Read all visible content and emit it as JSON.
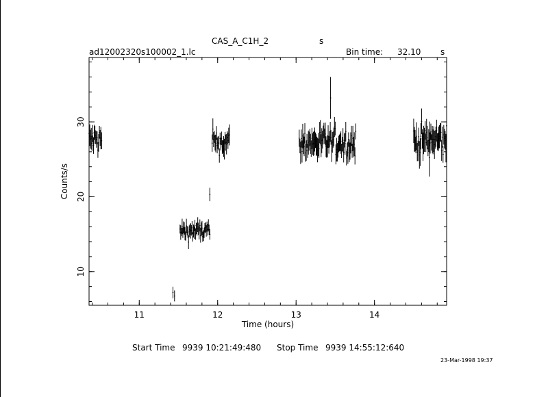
{
  "header": {
    "object_name": "CAS_A_C1H_2",
    "object_unit": "s",
    "file_name": "ad12002320s100002_1.lc",
    "bin_time_label": "Bin time:",
    "bin_time_value": "32.10",
    "bin_time_unit": "s"
  },
  "footer": {
    "start_label": "Start Time",
    "start_value": "9939 10:21:49:480",
    "stop_label": "Stop Time",
    "stop_value": "9939 14:55:12:640",
    "timestamp": "23-Mar-1998 19:37"
  },
  "chart_data": {
    "type": "scatter",
    "xlabel": "Time (hours)",
    "ylabel": "Counts/s",
    "xlim": [
      10.36,
      14.92
    ],
    "ylim": [
      5.5,
      38.6
    ],
    "xticks": [
      11,
      12,
      13,
      14
    ],
    "yticks": [
      10,
      20,
      30
    ],
    "x_minor_step": 0.2,
    "y_minor_step": 2,
    "grid": false,
    "series": [
      {
        "segments": [
          {
            "x_start": 10.36,
            "x_end": 10.52,
            "mean": 27.6,
            "spread": 1.2
          },
          {
            "x_start": 11.43,
            "x_end": 11.45,
            "mean": 6.8,
            "spread": 0.6
          },
          {
            "x_start": 11.52,
            "x_end": 11.9,
            "mean": 15.4,
            "spread": 0.8
          },
          {
            "x_start": 11.93,
            "x_end": 12.15,
            "mean": 27.3,
            "spread": 1.1
          },
          {
            "x_start": 13.04,
            "x_end": 13.76,
            "mean": 27.2,
            "spread": 1.3
          },
          {
            "x_start": 14.5,
            "x_end": 14.92,
            "mean": 27.5,
            "spread": 1.5
          }
        ],
        "isolated_points": [
          {
            "x": 11.9,
            "y": 20.3,
            "err": 0.9
          },
          {
            "x": 13.44,
            "y": 33.2,
            "err": 2.8
          },
          {
            "x": 14.7,
            "y": 25.2,
            "err": 2.5
          }
        ]
      }
    ]
  }
}
